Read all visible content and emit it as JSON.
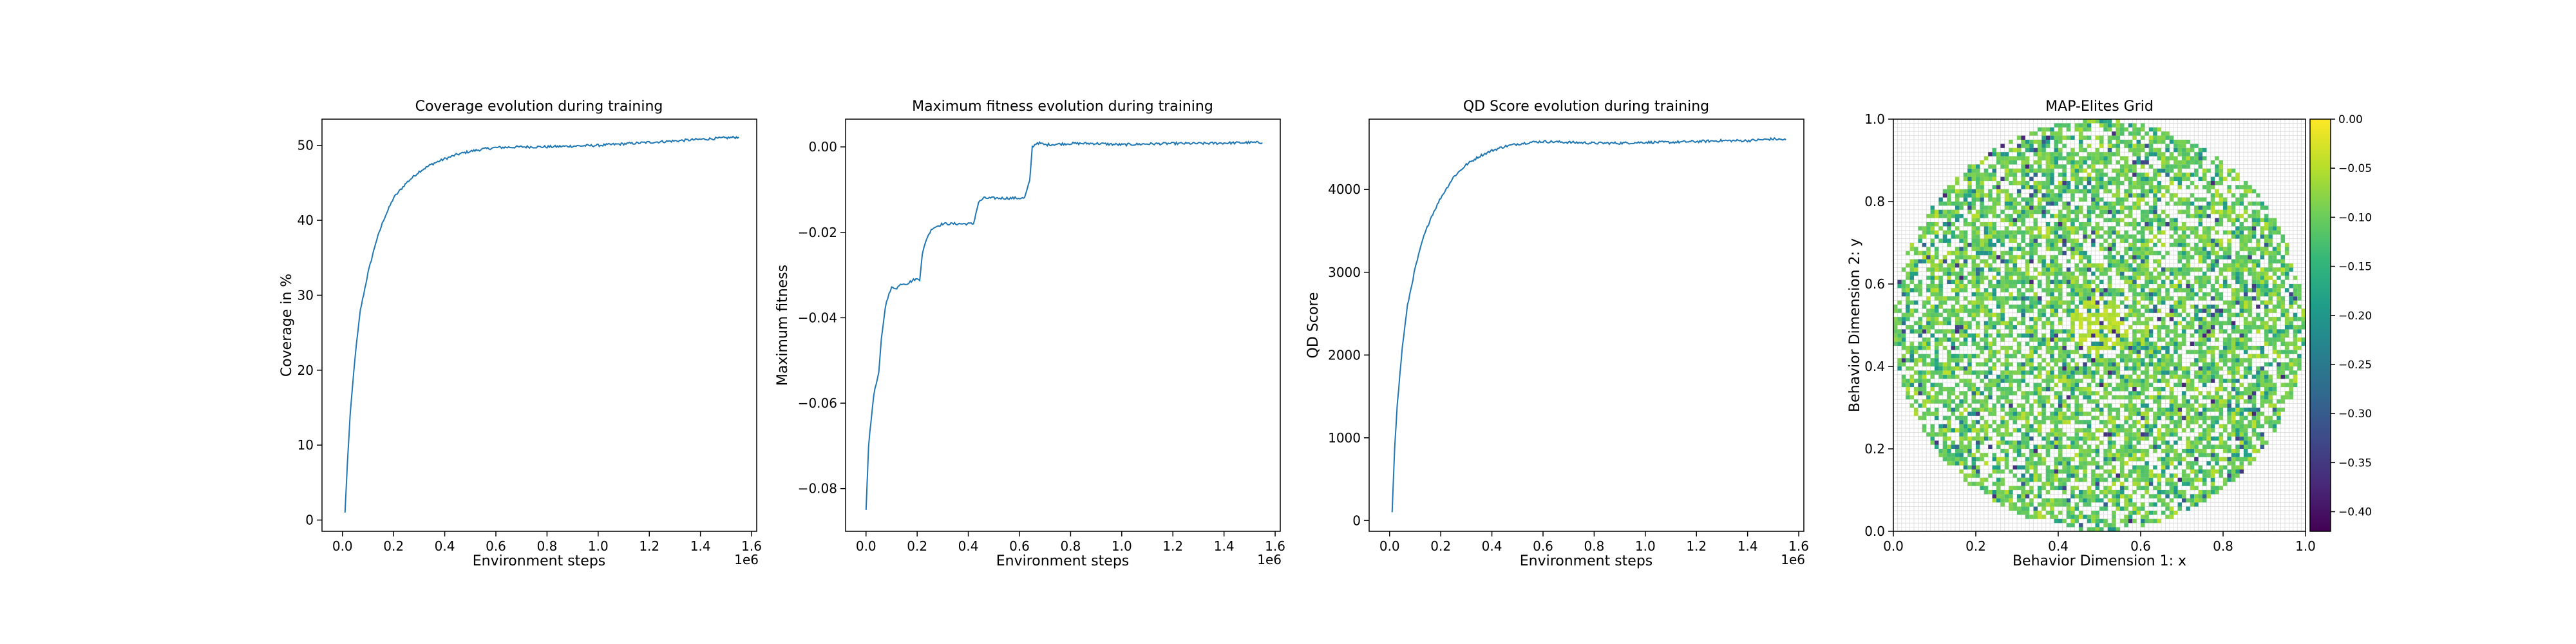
{
  "chart_data": [
    {
      "type": "line",
      "title": "Coverage evolution during training",
      "xlabel": "Environment steps",
      "ylabel": "Coverage in %",
      "x_offset_label": "1e6",
      "xlim": [
        -0.08,
        1.62
      ],
      "ylim": [
        -1.5,
        53.5
      ],
      "xticks": [
        0.0,
        0.2,
        0.4,
        0.6,
        0.8,
        1.0,
        1.2,
        1.4,
        1.6
      ],
      "xtick_labels": [
        "0.0",
        "0.2",
        "0.4",
        "0.6",
        "0.8",
        "1.0",
        "1.2",
        "1.4",
        "1.6"
      ],
      "yticks": [
        0,
        10,
        20,
        30,
        40,
        50
      ],
      "ytick_labels": [
        "0",
        "10",
        "20",
        "30",
        "40",
        "50"
      ],
      "color": "#1f77b4",
      "x": [
        0.01,
        0.02,
        0.03,
        0.05,
        0.07,
        0.1,
        0.13,
        0.16,
        0.2,
        0.25,
        0.3,
        0.35,
        0.4,
        0.45,
        0.5,
        0.55,
        0.6,
        0.7,
        0.8,
        0.9,
        1.0,
        1.1,
        1.2,
        1.3,
        1.4,
        1.5,
        1.55
      ],
      "y": [
        1.0,
        8.0,
        14.0,
        22.0,
        28.0,
        33.0,
        37.0,
        40.0,
        43.0,
        45.0,
        46.5,
        47.5,
        48.2,
        48.8,
        49.2,
        49.5,
        49.7,
        49.8,
        49.8,
        49.9,
        50.0,
        50.2,
        50.4,
        50.6,
        50.8,
        51.0,
        51.1
      ]
    },
    {
      "type": "line",
      "title": "Maximum fitness evolution during training",
      "xlabel": "Environment steps",
      "ylabel": "Maximum fitness",
      "x_offset_label": "1e6",
      "xlim": [
        -0.08,
        1.62
      ],
      "ylim": [
        -0.09,
        0.0065
      ],
      "xticks": [
        0.0,
        0.2,
        0.4,
        0.6,
        0.8,
        1.0,
        1.2,
        1.4,
        1.6
      ],
      "xtick_labels": [
        "0.0",
        "0.2",
        "0.4",
        "0.6",
        "0.8",
        "1.0",
        "1.2",
        "1.4",
        "1.6"
      ],
      "yticks": [
        -0.08,
        -0.06,
        -0.04,
        -0.02,
        0.0
      ],
      "ytick_labels": [
        "−0.08",
        "−0.06",
        "−0.04",
        "−0.02",
        "0.00"
      ],
      "color": "#1f77b4",
      "x": [
        0.0,
        0.01,
        0.02,
        0.03,
        0.05,
        0.06,
        0.07,
        0.08,
        0.1,
        0.12,
        0.14,
        0.16,
        0.19,
        0.21,
        0.22,
        0.24,
        0.26,
        0.3,
        0.36,
        0.42,
        0.44,
        0.46,
        0.5,
        0.56,
        0.62,
        0.64,
        0.65,
        0.67,
        0.7,
        0.8,
        0.9,
        1.0,
        1.1,
        1.2,
        1.3,
        1.4,
        1.5,
        1.55
      ],
      "y": [
        -0.085,
        -0.07,
        -0.064,
        -0.058,
        -0.053,
        -0.045,
        -0.04,
        -0.036,
        -0.033,
        -0.033,
        -0.032,
        -0.032,
        -0.031,
        -0.031,
        -0.025,
        -0.021,
        -0.019,
        -0.018,
        -0.018,
        -0.018,
        -0.013,
        -0.012,
        -0.012,
        -0.012,
        -0.012,
        -0.008,
        0.0,
        0.001,
        0.0005,
        0.0008,
        0.0008,
        0.0005,
        0.0007,
        0.0008,
        0.0008,
        0.0009,
        0.001,
        0.001
      ]
    },
    {
      "type": "line",
      "title": "QD Score evolution during training",
      "xlabel": "Environment steps",
      "ylabel": "QD Score",
      "x_offset_label": "1e6",
      "xlim": [
        -0.08,
        1.62
      ],
      "ylim": [
        -130,
        4850
      ],
      "xticks": [
        0.0,
        0.2,
        0.4,
        0.6,
        0.8,
        1.0,
        1.2,
        1.4,
        1.6
      ],
      "xtick_labels": [
        "0.0",
        "0.2",
        "0.4",
        "0.6",
        "0.8",
        "1.0",
        "1.2",
        "1.4",
        "1.6"
      ],
      "yticks": [
        0,
        1000,
        2000,
        3000,
        4000
      ],
      "ytick_labels": [
        "0",
        "1000",
        "2000",
        "3000",
        "4000"
      ],
      "color": "#1f77b4",
      "x": [
        0.01,
        0.02,
        0.03,
        0.05,
        0.07,
        0.1,
        0.13,
        0.16,
        0.2,
        0.25,
        0.3,
        0.35,
        0.4,
        0.45,
        0.5,
        0.55,
        0.6,
        0.7,
        0.8,
        0.9,
        1.0,
        1.1,
        1.2,
        1.3,
        1.4,
        1.5,
        1.55
      ],
      "y": [
        100,
        900,
        1400,
        2100,
        2600,
        3050,
        3400,
        3650,
        3900,
        4150,
        4300,
        4400,
        4470,
        4520,
        4550,
        4570,
        4580,
        4570,
        4560,
        4560,
        4570,
        4570,
        4580,
        4590,
        4590,
        4610,
        4600
      ]
    },
    {
      "type": "heatmap",
      "title": "MAP-Elites Grid",
      "xlabel": "Behavior Dimension 1: x",
      "ylabel": "Behavior Dimension 2: y",
      "xlim": [
        0.0,
        1.0
      ],
      "ylim": [
        0.0,
        1.0
      ],
      "xticks": [
        0.0,
        0.2,
        0.4,
        0.6,
        0.8,
        1.0
      ],
      "xtick_labels": [
        "0.0",
        "0.2",
        "0.4",
        "0.6",
        "0.8",
        "1.0"
      ],
      "yticks": [
        0.0,
        0.2,
        0.4,
        0.6,
        0.8,
        1.0
      ],
      "ytick_labels": [
        "0.0",
        "0.2",
        "0.4",
        "0.6",
        "0.8",
        "1.0"
      ],
      "grid_cells": 100,
      "filled_region": {
        "shape": "disk",
        "center": [
          0.5,
          0.5
        ],
        "radius": 0.5
      },
      "fill_fraction": 0.51,
      "colormap": "viridis",
      "colorbar": {
        "vmin": -0.42,
        "vmax": 0.0,
        "ticks": [
          0.0,
          -0.05,
          -0.1,
          -0.15,
          -0.2,
          -0.25,
          -0.3,
          -0.35,
          -0.4
        ],
        "tick_labels": [
          "0.00",
          "−0.05",
          "−0.10",
          "−0.15",
          "−0.20",
          "−0.25",
          "−0.30",
          "−0.35",
          "−0.40"
        ]
      },
      "color_stops": [
        "#440154",
        "#482878",
        "#3e4989",
        "#31688e",
        "#26828e",
        "#1f9e89",
        "#35b779",
        "#6ece58",
        "#b5de2b",
        "#fde725"
      ]
    }
  ]
}
